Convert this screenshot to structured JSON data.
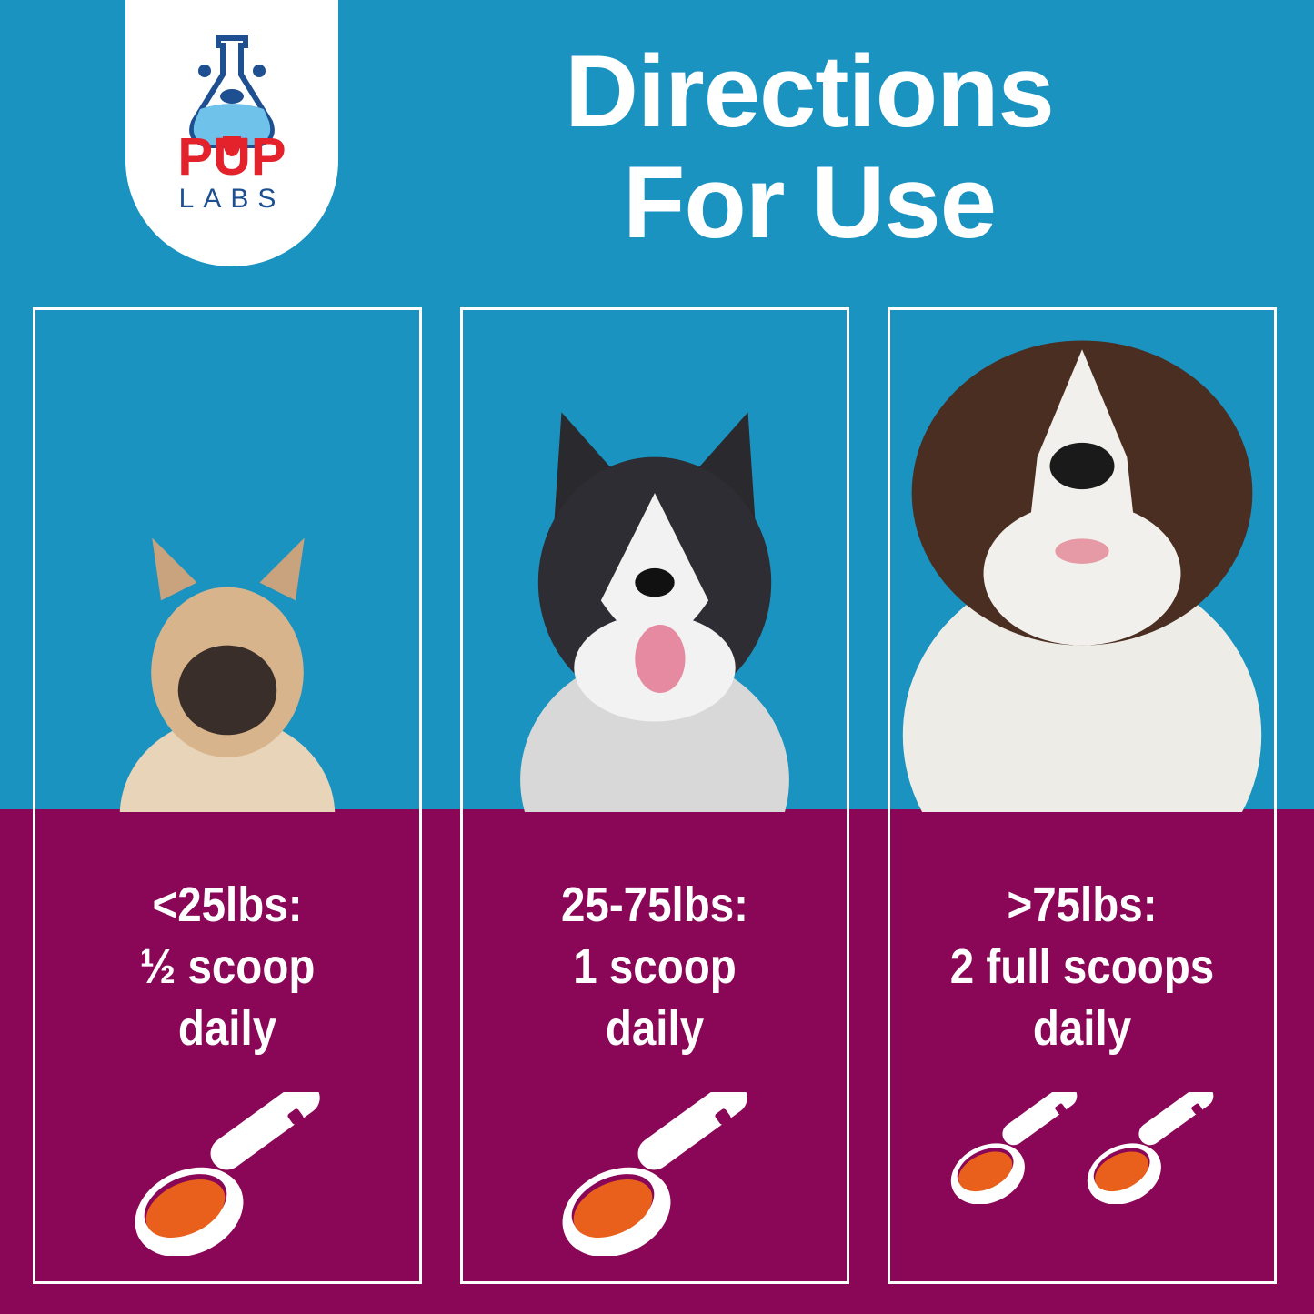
{
  "brand": {
    "name_top": "PUP",
    "name_bottom": "LABS"
  },
  "title": {
    "line1": "Directions",
    "line2": "For Use"
  },
  "colors": {
    "background_blue": "#1a93c0",
    "purple": "#8a0656",
    "orange": "#e8601c",
    "logo_red": "#e3222b",
    "logo_navy": "#1d4f91"
  },
  "panels": [
    {
      "dog": "french-bulldog",
      "weight": "<25lbs:",
      "amount": "½ scoop",
      "frequency": "daily",
      "scoops": [
        0.5
      ]
    },
    {
      "dog": "husky",
      "weight": "25-75lbs:",
      "amount": "1 scoop",
      "frequency": "daily",
      "scoops": [
        1
      ]
    },
    {
      "dog": "saint-bernard",
      "weight": ">75lbs:",
      "amount": "2 full scoops",
      "frequency": "daily",
      "scoops": [
        1,
        1
      ]
    }
  ]
}
